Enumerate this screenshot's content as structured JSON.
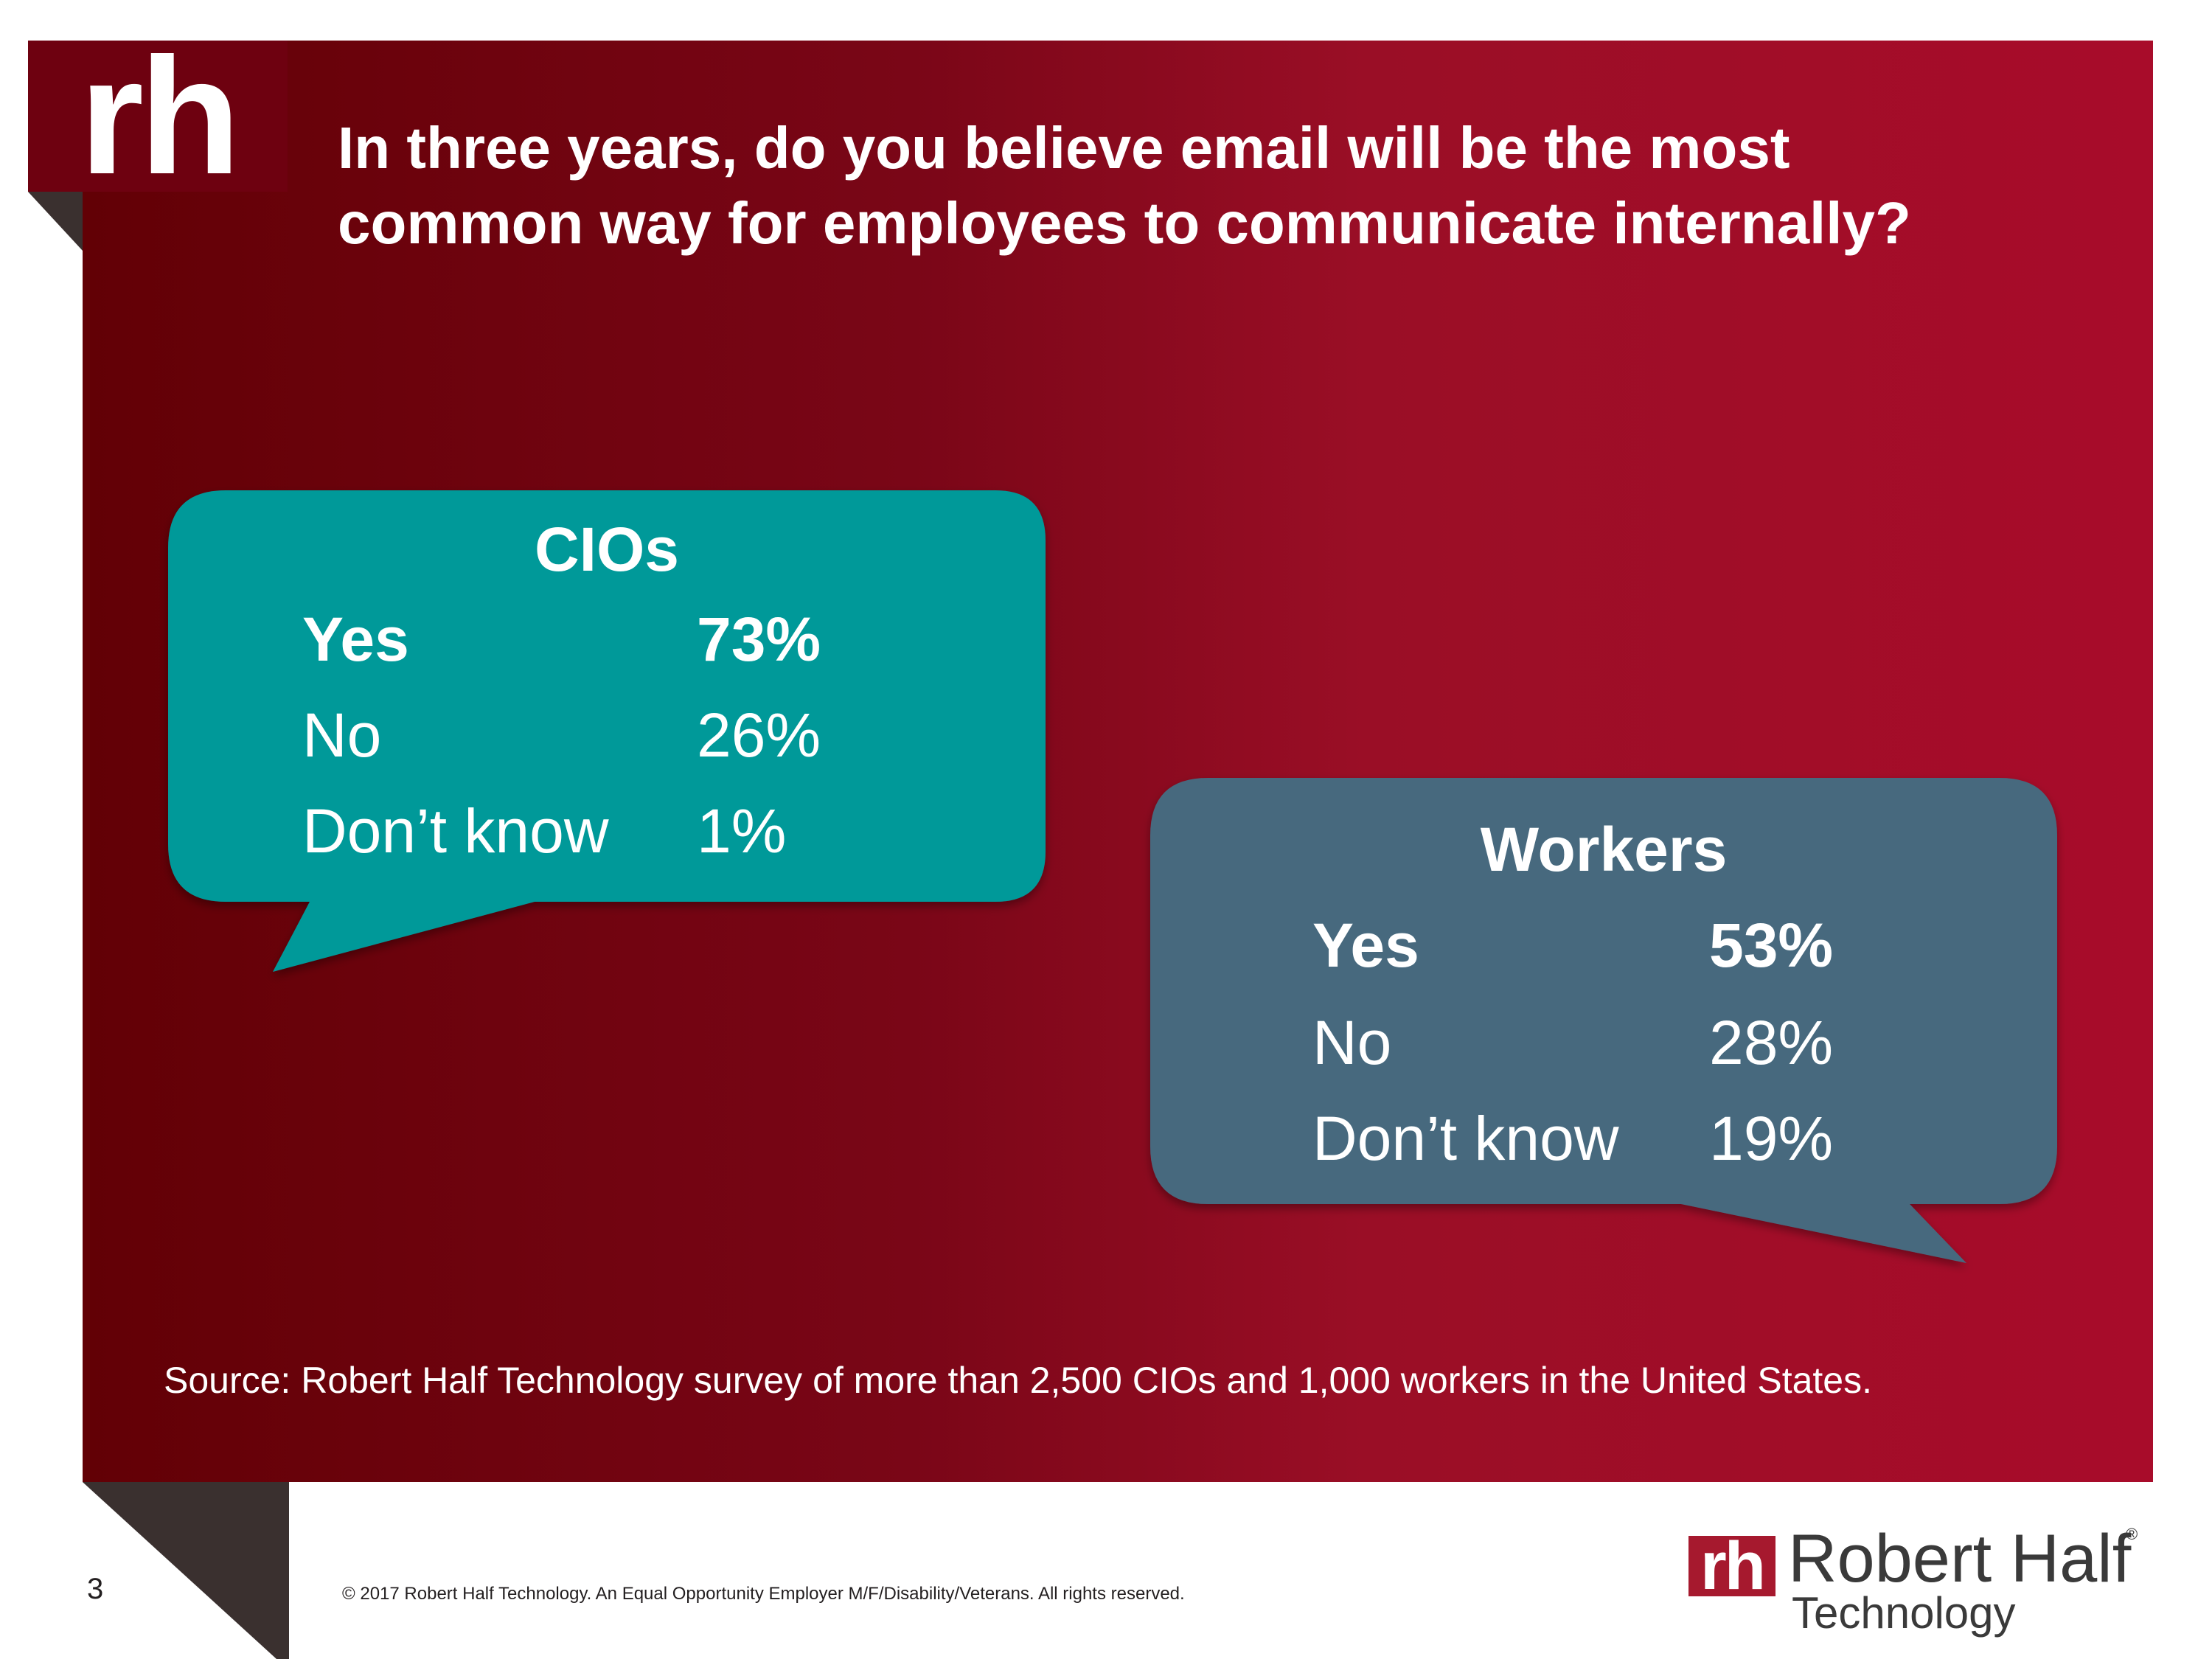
{
  "colors": {
    "panel_dark": "#620005",
    "panel_light": "#a80c2a",
    "cio_bubble": "#009999",
    "workers_bubble": "#46697e",
    "accent_gray": "#3a302f",
    "brand_red": "#a6192e"
  },
  "logo": {
    "text": "rh"
  },
  "title": {
    "line1": "In three years, do you believe email will be the most",
    "line2": "common way for employees to communicate internally?"
  },
  "cios": {
    "heading": "CIOs",
    "rows": [
      {
        "label": "Yes",
        "value": "73%"
      },
      {
        "label": "No",
        "value": "26%"
      },
      {
        "label": "Don’t know",
        "value": "1%"
      }
    ]
  },
  "workers": {
    "heading": "Workers",
    "rows": [
      {
        "label": "Yes",
        "value": "53%"
      },
      {
        "label": "No",
        "value": "28%"
      },
      {
        "label": "Don’t know",
        "value": "19%"
      }
    ]
  },
  "source": "Source: Robert Half Technology survey of more than 2,500 CIOs and 1,000 workers in the United States.",
  "footer": {
    "page_number": "3",
    "copyright": "© 2017 Robert Half Technology. An Equal Opportunity Employer M/F/Disability/Veterans. All rights reserved.",
    "brand_mark": "rh",
    "brand_name": "Robert Half",
    "brand_registered": "®",
    "brand_sub": "Technology"
  }
}
